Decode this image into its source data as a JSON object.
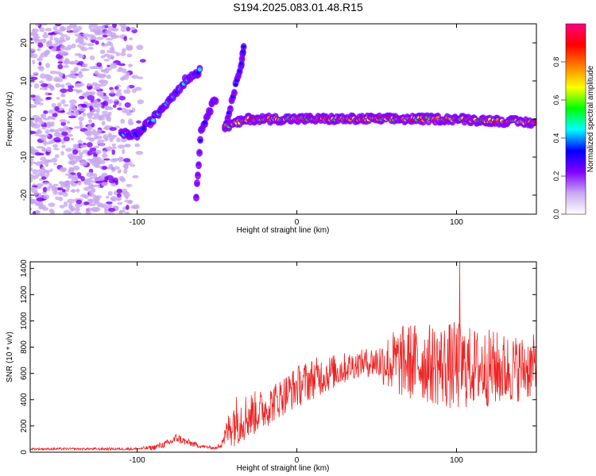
{
  "figure_title": "S194.2025.083.01.48.R15",
  "chart_data": [
    {
      "type": "heatmap",
      "title": "",
      "xlabel": "Height of straight line (km)",
      "ylabel": "Frequency (Hz)",
      "xlim": [
        -167,
        150
      ],
      "ylim": [
        -25,
        25
      ],
      "xticks": [
        -100,
        0,
        100
      ],
      "yticks": [
        -20,
        -10,
        0,
        10,
        20
      ],
      "colorbar": {
        "label": "Normalized spectral amplitude",
        "range": [
          0,
          1
        ],
        "ticks": [
          "0.0",
          "0.2",
          "0.4",
          "0.6",
          "0.8"
        ],
        "colors": [
          "#ffffff",
          "#c8a8f0",
          "#8000ff",
          "#0000ff",
          "#00ffff",
          "#00ff00",
          "#ffff00",
          "#ff8000",
          "#ff0000",
          "#ff0080"
        ]
      },
      "features": [
        {
          "name": "noise",
          "x_range": [
            -167,
            -95
          ],
          "freq_range": [
            -25,
            25
          ],
          "amplitude": 0.15
        },
        {
          "name": "trace-1",
          "points": [
            [
              -110,
              -4
            ],
            [
              -100,
              -4
            ],
            [
              -90,
              0
            ],
            [
              -80,
              5
            ],
            [
              -70,
              10
            ],
            [
              -60,
              13
            ]
          ],
          "amplitude": 0.4
        },
        {
          "name": "trace-2",
          "points": [
            [
              -63,
              -20
            ],
            [
              -60,
              -3
            ],
            [
              -55,
              2
            ],
            [
              -50,
              6
            ]
          ],
          "amplitude": 0.3
        },
        {
          "name": "trace-3",
          "points": [
            [
              -45,
              -2
            ],
            [
              -40,
              6
            ],
            [
              -35,
              14
            ],
            [
              -33,
              20
            ]
          ],
          "amplitude": 0.35
        },
        {
          "name": "main-tone",
          "points": [
            [
              -45,
              -2
            ],
            [
              -30,
              0
            ],
            [
              0,
              0
            ],
            [
              50,
              0
            ],
            [
              100,
              0
            ],
            [
              150,
              -1
            ]
          ],
          "amplitude": 0.9
        }
      ]
    },
    {
      "type": "line",
      "title": "",
      "xlabel": "Height of straight line (km)",
      "ylabel": "SNR (10 * v/v)",
      "xlim": [
        -167,
        150
      ],
      "ylim": [
        0,
        1450
      ],
      "xticks": [
        -100,
        0,
        100
      ],
      "yticks": [
        0,
        200,
        400,
        600,
        800,
        1000,
        1200,
        1400
      ],
      "color": "#ee2222",
      "envelope": {
        "x": [
          -167,
          -100,
          -90,
          -80,
          -75,
          -70,
          -60,
          -50,
          -45,
          -40,
          -30,
          -20,
          -10,
          0,
          10,
          20,
          30,
          40,
          50,
          60,
          70,
          80,
          90,
          100,
          110,
          120,
          130,
          140,
          150
        ],
        "mean": [
          25,
          25,
          35,
          70,
          110,
          80,
          45,
          30,
          120,
          240,
          280,
          330,
          420,
          500,
          560,
          600,
          640,
          680,
          690,
          680,
          690,
          680,
          660,
          650,
          650,
          640,
          630,
          640,
          650
        ],
        "spread": [
          8,
          10,
          20,
          30,
          40,
          30,
          15,
          10,
          80,
          200,
          180,
          150,
          150,
          160,
          160,
          140,
          120,
          100,
          130,
          250,
          300,
          300,
          320,
          350,
          300,
          300,
          280,
          250,
          250
        ]
      },
      "peak": {
        "x": 102,
        "y": 1450
      }
    }
  ]
}
